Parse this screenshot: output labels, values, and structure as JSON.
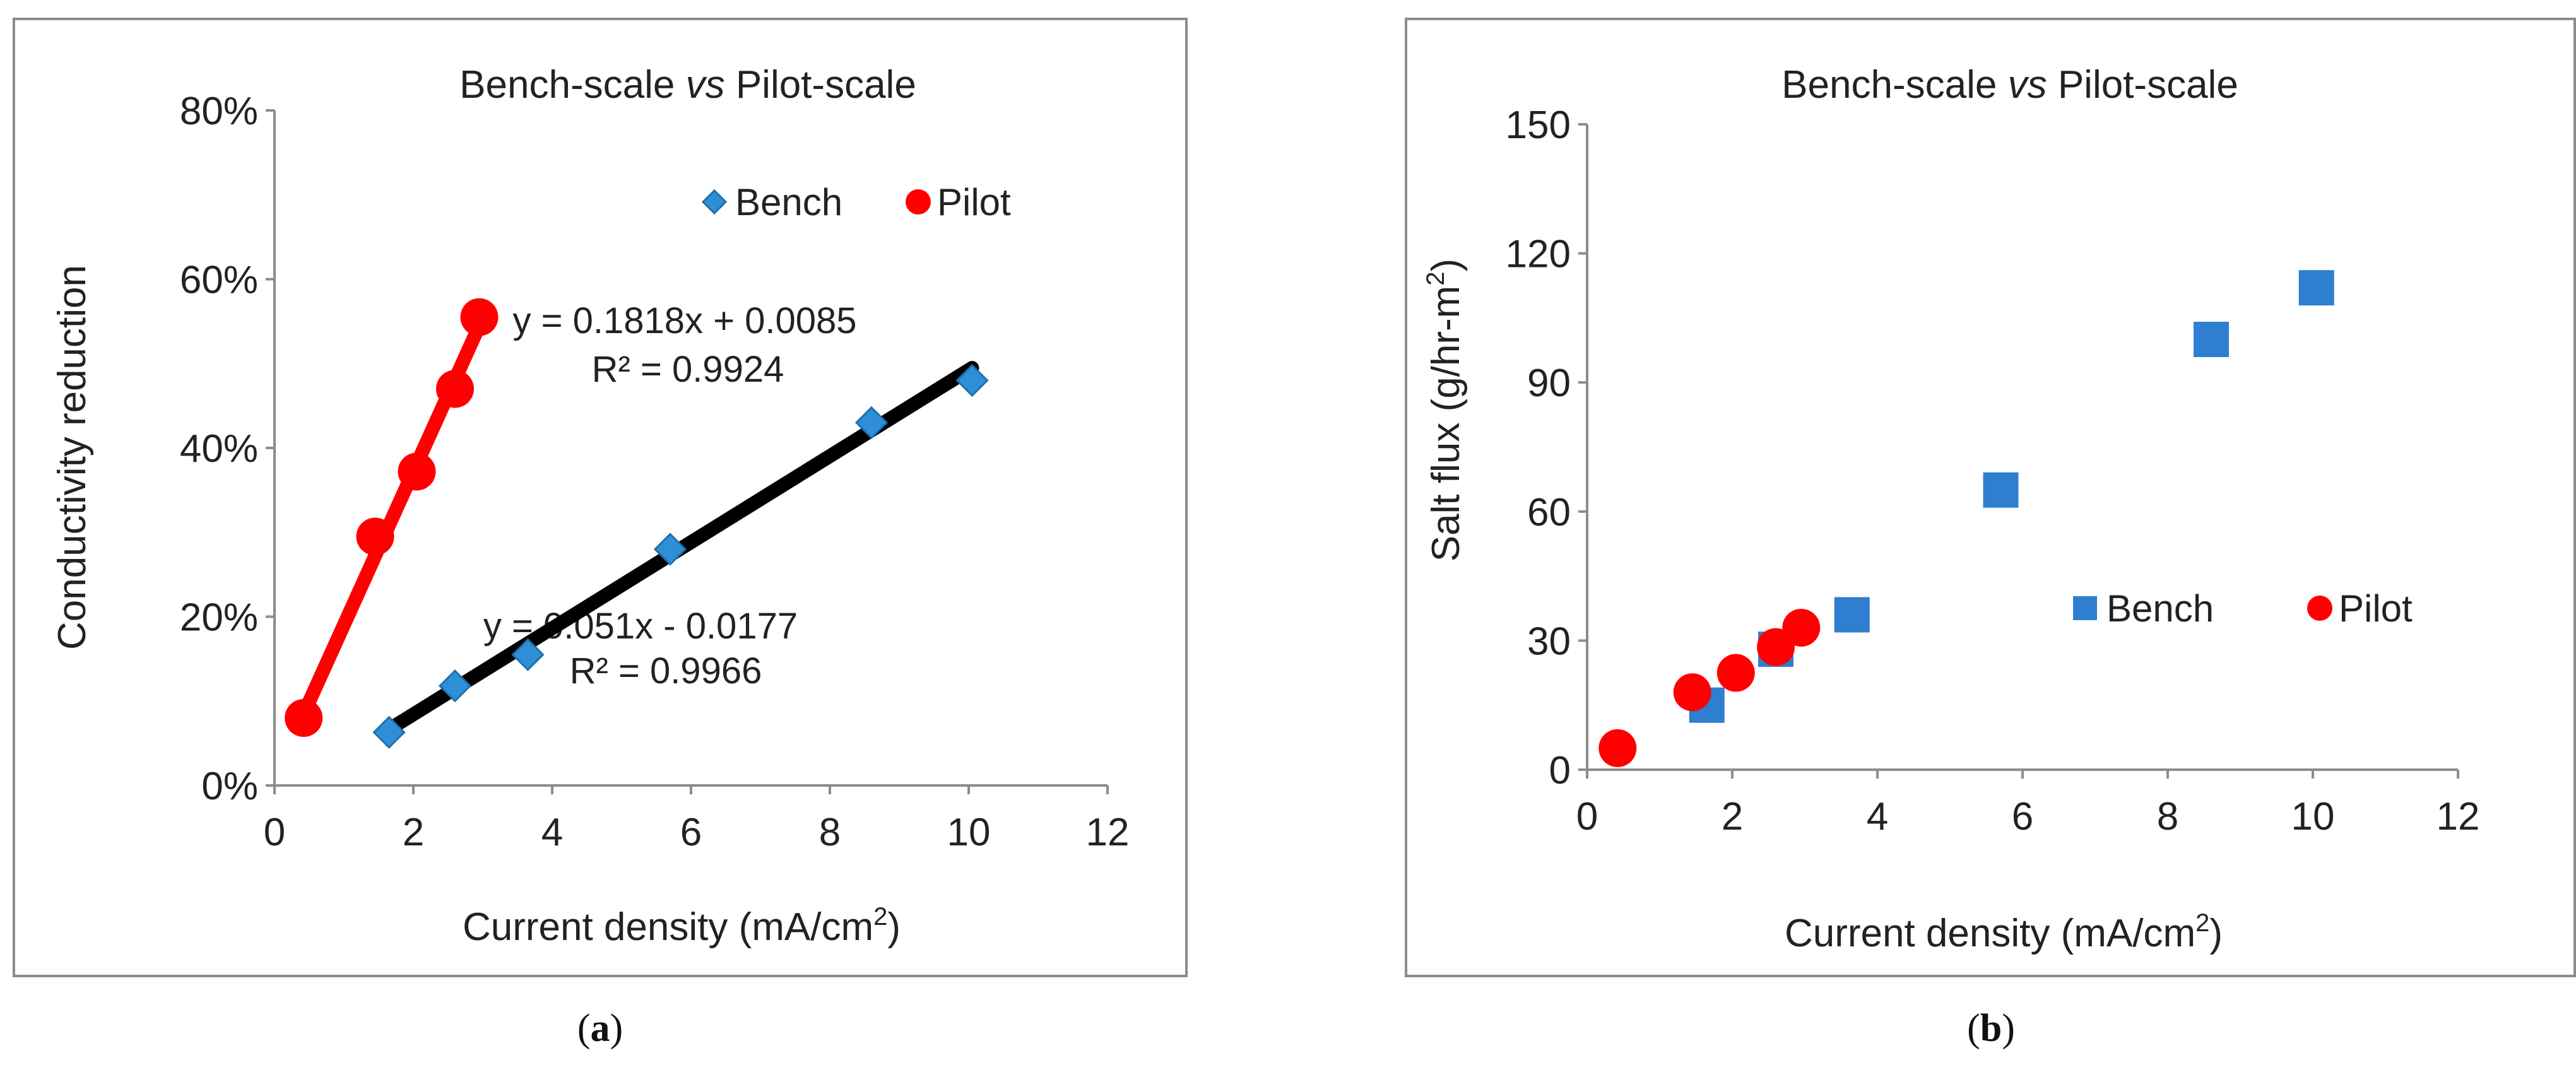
{
  "chart_data": [
    {
      "type": "scatter",
      "panel_label": "a",
      "title_left": "Bench-scale ",
      "title_italic": "vs",
      "title_right": " Pilot-scale",
      "xlabel": "Current density (mA/cm",
      "xlabel_sup": "2",
      "xlabel_end": ")",
      "ylabel": "Conductivity reduction",
      "xlim": [
        0,
        12
      ],
      "ylim": [
        0,
        0.8
      ],
      "xticks": [
        0,
        2,
        4,
        6,
        8,
        10,
        12
      ],
      "xtick_labels": [
        "0",
        "2",
        "4",
        "6",
        "8",
        "10",
        "12"
      ],
      "yticks": [
        0,
        0.2,
        0.4,
        0.6,
        0.8
      ],
      "ytick_labels": [
        "0%",
        "20%",
        "40%",
        "60%",
        "80%"
      ],
      "legend_position": "top-right",
      "series": [
        {
          "name": "Bench",
          "marker": "diamond",
          "color": "#2E8FD6",
          "x": [
            1.65,
            2.6,
            3.65,
            5.7,
            8.6,
            10.05
          ],
          "y": [
            0.063,
            0.118,
            0.155,
            0.28,
            0.43,
            0.48
          ],
          "trendline": {
            "slope": 0.051,
            "intercept": -0.0177,
            "x_range": [
              1.65,
              10.05
            ],
            "color": "#000000",
            "equation": "y = 0.051x - 0.0177",
            "r2": "R² = 0.9966"
          }
        },
        {
          "name": "Pilot",
          "marker": "circle",
          "color": "#FF0000",
          "x": [
            0.42,
            1.45,
            2.05,
            2.6,
            2.95
          ],
          "y": [
            0.08,
            0.295,
            0.372,
            0.47,
            0.555
          ],
          "trendline": {
            "slope": 0.1818,
            "intercept": 0.0085,
            "x_range": [
              0.42,
              2.95
            ],
            "color": "#FF0000",
            "equation": "y = 0.1818x + 0.0085",
            "r2": "R² = 0.9924"
          }
        }
      ]
    },
    {
      "type": "scatter",
      "panel_label": "b",
      "title_left": "Bench-scale ",
      "title_italic": "vs",
      "title_right": " Pilot-scale",
      "xlabel": "Current density (mA/cm",
      "xlabel_sup": "2",
      "xlabel_end": ")",
      "ylabel": "Salt flux (g/hr-m",
      "ylabel_sup": "2",
      "ylabel_end": ")",
      "xlim": [
        0,
        12
      ],
      "ylim": [
        0,
        150
      ],
      "xticks": [
        0,
        2,
        4,
        6,
        8,
        10,
        12
      ],
      "xtick_labels": [
        "0",
        "2",
        "4",
        "6",
        "8",
        "10",
        "12"
      ],
      "yticks": [
        0,
        30,
        60,
        90,
        120,
        150
      ],
      "ytick_labels": [
        "0",
        "30",
        "60",
        "90",
        "120",
        "150"
      ],
      "legend_position": "center-right",
      "series": [
        {
          "name": "Bench",
          "marker": "square",
          "color": "#2F7FD0",
          "x": [
            1.65,
            2.6,
            3.65,
            5.7,
            8.6,
            10.05
          ],
          "y": [
            15,
            28,
            36,
            65,
            100,
            112
          ]
        },
        {
          "name": "Pilot",
          "marker": "circle",
          "color": "#FF0000",
          "x": [
            0.42,
            1.45,
            2.05,
            2.6,
            2.95
          ],
          "y": [
            5,
            18,
            22.5,
            28.5,
            33
          ]
        }
      ]
    }
  ]
}
